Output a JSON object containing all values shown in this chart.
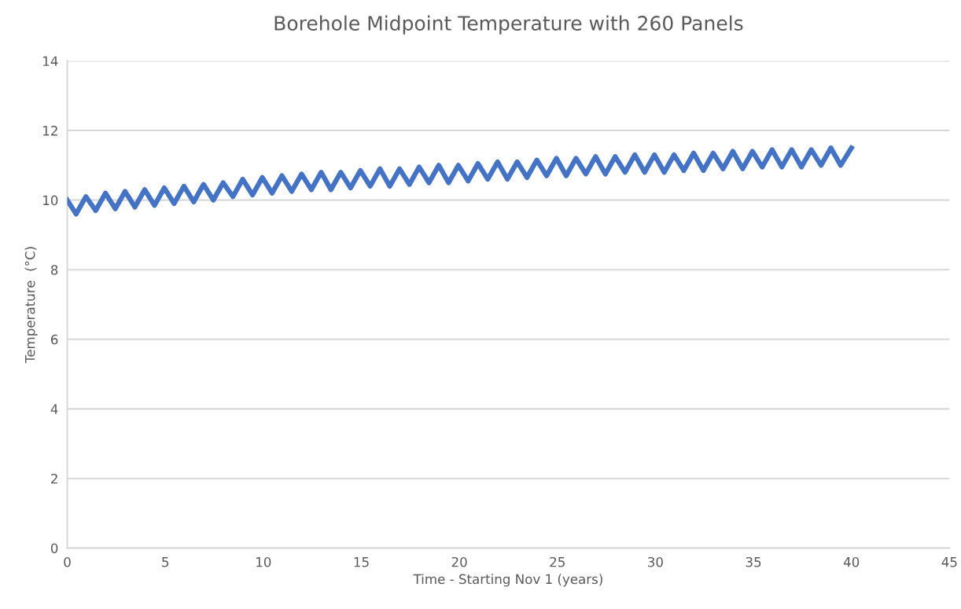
{
  "chart_data": {
    "type": "line",
    "title": "Borehole Midpoint Temperature with 260 Panels",
    "xlabel": "Time - Starting Nov 1 (years)",
    "ylabel": "Temperature  (°C)",
    "x": [
      0,
      0.45,
      0.95,
      1.45,
      1.95,
      2.45,
      2.95,
      3.45,
      3.95,
      4.45,
      4.95,
      5.45,
      5.95,
      6.45,
      6.95,
      7.45,
      7.95,
      8.45,
      8.95,
      9.45,
      9.95,
      10.45,
      10.95,
      11.45,
      11.95,
      12.45,
      12.95,
      13.45,
      13.95,
      14.45,
      14.95,
      15.45,
      15.95,
      16.45,
      16.95,
      17.45,
      17.95,
      18.45,
      18.95,
      19.45,
      19.95,
      20.45,
      20.95,
      21.45,
      21.95,
      22.45,
      22.95,
      23.45,
      23.95,
      24.45,
      24.95,
      25.45,
      25.95,
      26.45,
      26.95,
      27.45,
      27.95,
      28.45,
      28.95,
      29.45,
      29.95,
      30.45,
      30.95,
      31.45,
      31.95,
      32.45,
      32.95,
      33.45,
      33.95,
      34.45,
      34.95,
      35.45,
      35.95,
      36.45,
      36.95,
      37.45,
      37.95,
      38.45,
      38.95,
      39.45,
      40
    ],
    "series": [
      {
        "color": "#4472c4",
        "values": [
          10.0,
          9.6,
          10.1,
          9.7,
          10.2,
          9.75,
          10.25,
          9.8,
          10.3,
          9.85,
          10.35,
          9.9,
          10.4,
          9.95,
          10.45,
          10.0,
          10.5,
          10.1,
          10.6,
          10.15,
          10.65,
          10.2,
          10.7,
          10.25,
          10.75,
          10.3,
          10.8,
          10.3,
          10.8,
          10.35,
          10.85,
          10.4,
          10.9,
          10.4,
          10.9,
          10.45,
          10.95,
          10.5,
          11.0,
          10.5,
          11.0,
          10.55,
          11.05,
          10.6,
          11.1,
          10.6,
          11.1,
          10.65,
          11.15,
          10.7,
          11.2,
          10.7,
          11.2,
          10.75,
          11.25,
          10.75,
          11.25,
          10.8,
          11.3,
          10.8,
          11.3,
          10.8,
          11.3,
          10.85,
          11.35,
          10.85,
          11.35,
          10.9,
          11.4,
          10.9,
          11.4,
          10.95,
          11.45,
          10.95,
          11.45,
          10.95,
          11.45,
          11.0,
          11.5,
          11.0,
          11.5
        ]
      }
    ],
    "xlim": [
      0,
      45
    ],
    "xticks": [
      0,
      5,
      10,
      15,
      20,
      25,
      30,
      35,
      40,
      45
    ],
    "ylim": [
      0,
      14
    ],
    "yticks": [
      0,
      2,
      4,
      6,
      8,
      10,
      12,
      14
    ],
    "grid": "y",
    "marker": "none",
    "line_style": "solid"
  }
}
